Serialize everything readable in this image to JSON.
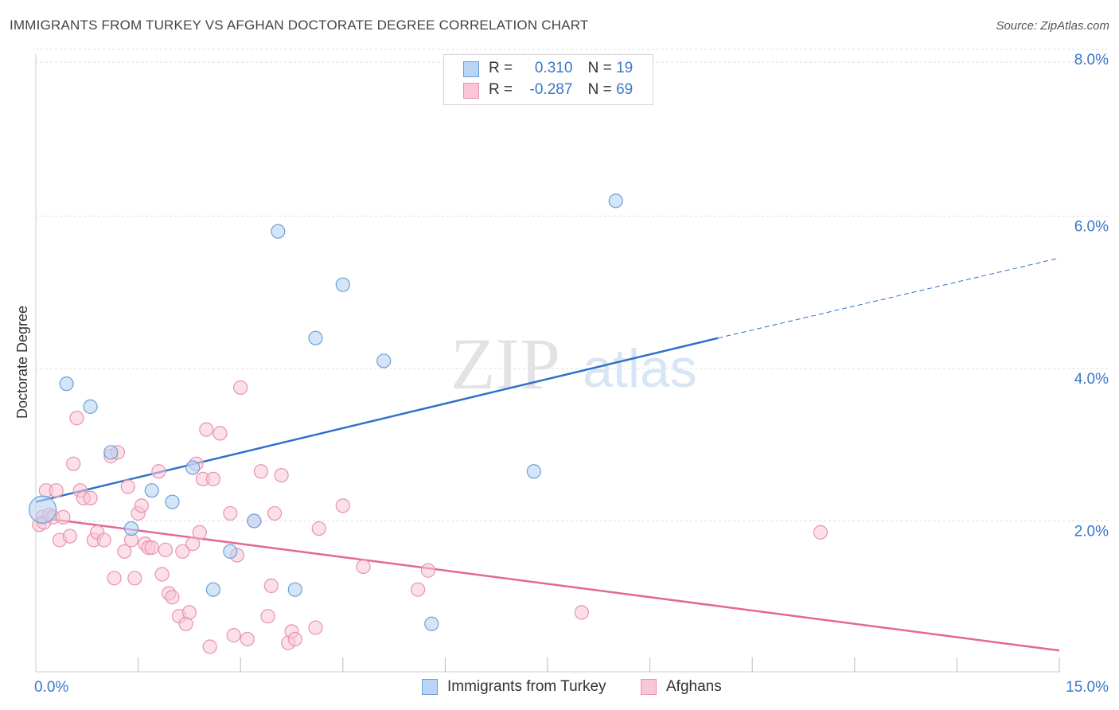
{
  "header": {
    "title": "IMMIGRANTS FROM TURKEY VS AFGHAN DOCTORATE DEGREE CORRELATION CHART",
    "source": "Source: ZipAtlas.com"
  },
  "watermark": {
    "zip": "ZIP",
    "atlas": "atlas"
  },
  "legend": {
    "r_label": "R =",
    "n_label": "N =",
    "rows": [
      {
        "series": "Immigrants from Turkey",
        "r": "0.310",
        "n": "19"
      },
      {
        "series": "Afghans",
        "r": "-0.287",
        "n": "69"
      }
    ]
  },
  "colors": {
    "turkey_fill": "#b9d4f4",
    "turkey_stroke": "#6c9fd8",
    "turkey_line": "#2f6fcc",
    "afghan_fill": "#f8c6d6",
    "afghan_stroke": "#e893b0",
    "afghan_line": "#e3679a",
    "tick_label": "#3a78c9",
    "grid": "#dddddd"
  },
  "chart_data": {
    "type": "scatter",
    "title": "IMMIGRANTS FROM TURKEY VS AFGHAN DOCTORATE DEGREE CORRELATION CHART",
    "xlabel": "",
    "ylabel": "Doctorate Degree",
    "xlim": [
      0,
      15
    ],
    "ylim": [
      0,
      8
    ],
    "x_tick_labels": [
      "0.0%",
      "15.0%"
    ],
    "y_ticks": [
      2,
      4,
      6,
      8
    ],
    "y_tick_labels": [
      "2.0%",
      "4.0%",
      "6.0%",
      "8.0%"
    ],
    "grid": "horizontal dashed",
    "legend_position": "top-center",
    "series": [
      {
        "name": "Immigrants from Turkey",
        "r": 0.31,
        "n": 19,
        "points": [
          [
            0.1,
            2.15
          ],
          [
            0.45,
            3.8
          ],
          [
            0.8,
            3.5
          ],
          [
            1.1,
            2.9
          ],
          [
            1.4,
            1.9
          ],
          [
            1.7,
            2.4
          ],
          [
            2.0,
            2.25
          ],
          [
            2.3,
            2.7
          ],
          [
            2.6,
            1.1
          ],
          [
            2.85,
            1.6
          ],
          [
            3.2,
            2.0
          ],
          [
            3.55,
            5.8
          ],
          [
            3.8,
            1.1
          ],
          [
            4.1,
            4.4
          ],
          [
            4.5,
            5.1
          ],
          [
            5.1,
            4.1
          ],
          [
            5.8,
            0.65
          ],
          [
            7.3,
            2.65
          ],
          [
            8.5,
            6.2
          ]
        ],
        "trend": {
          "x0": 0.0,
          "y0": 2.25,
          "x1": 10.0,
          "y1": 4.4,
          "dash_to_x": 15.0,
          "dash_to_y": 5.45
        }
      },
      {
        "name": "Afghans",
        "r": -0.287,
        "n": 69,
        "points": [
          [
            0.05,
            1.95
          ],
          [
            0.1,
            2.05
          ],
          [
            0.12,
            1.98
          ],
          [
            0.15,
            2.4
          ],
          [
            0.2,
            2.08
          ],
          [
            0.25,
            2.05
          ],
          [
            0.3,
            2.4
          ],
          [
            0.35,
            1.75
          ],
          [
            0.4,
            2.05
          ],
          [
            0.5,
            1.8
          ],
          [
            0.55,
            2.75
          ],
          [
            0.6,
            3.35
          ],
          [
            0.65,
            2.4
          ],
          [
            0.7,
            2.3
          ],
          [
            0.8,
            2.3
          ],
          [
            0.85,
            1.75
          ],
          [
            0.9,
            1.85
          ],
          [
            1.0,
            1.75
          ],
          [
            1.1,
            2.85
          ],
          [
            1.15,
            1.25
          ],
          [
            1.2,
            2.9
          ],
          [
            1.3,
            1.6
          ],
          [
            1.35,
            2.45
          ],
          [
            1.4,
            1.75
          ],
          [
            1.45,
            1.25
          ],
          [
            1.5,
            2.1
          ],
          [
            1.55,
            2.2
          ],
          [
            1.6,
            1.7
          ],
          [
            1.65,
            1.65
          ],
          [
            1.7,
            1.65
          ],
          [
            1.8,
            2.65
          ],
          [
            1.85,
            1.3
          ],
          [
            1.9,
            1.62
          ],
          [
            1.95,
            1.05
          ],
          [
            2.0,
            1.0
          ],
          [
            2.1,
            0.75
          ],
          [
            2.15,
            1.6
          ],
          [
            2.2,
            0.65
          ],
          [
            2.25,
            0.8
          ],
          [
            2.3,
            1.7
          ],
          [
            2.35,
            2.75
          ],
          [
            2.4,
            1.85
          ],
          [
            2.45,
            2.55
          ],
          [
            2.5,
            3.2
          ],
          [
            2.55,
            0.35
          ],
          [
            2.6,
            2.55
          ],
          [
            2.7,
            3.15
          ],
          [
            2.85,
            2.1
          ],
          [
            2.9,
            0.5
          ],
          [
            2.95,
            1.55
          ],
          [
            3.0,
            3.75
          ],
          [
            3.1,
            0.45
          ],
          [
            3.2,
            2.0
          ],
          [
            3.3,
            2.65
          ],
          [
            3.4,
            0.75
          ],
          [
            3.45,
            1.15
          ],
          [
            3.5,
            2.1
          ],
          [
            3.6,
            2.6
          ],
          [
            3.7,
            0.4
          ],
          [
            3.75,
            0.55
          ],
          [
            3.8,
            0.45
          ],
          [
            4.1,
            0.6
          ],
          [
            4.15,
            1.9
          ],
          [
            4.5,
            2.2
          ],
          [
            4.8,
            1.4
          ],
          [
            5.6,
            1.1
          ],
          [
            5.75,
            1.35
          ],
          [
            8.0,
            0.8
          ],
          [
            11.5,
            1.85
          ]
        ],
        "trend": {
          "x0": 0.0,
          "y0": 2.05,
          "x1": 15.0,
          "y1": 0.3
        }
      }
    ]
  }
}
